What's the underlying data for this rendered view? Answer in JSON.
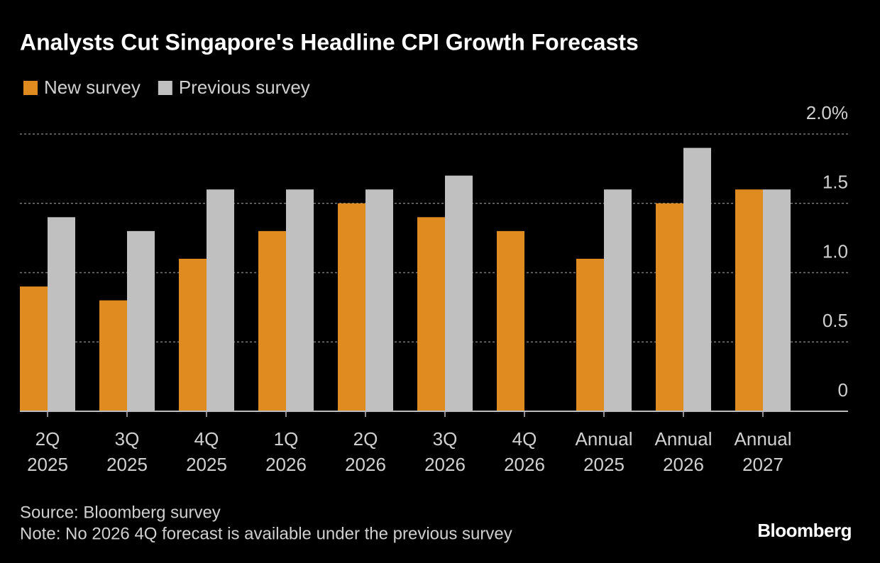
{
  "chart_data": {
    "type": "bar",
    "title": "Analysts Cut Singapore's Headline CPI Growth Forecasts",
    "categories": [
      [
        "2Q",
        "2025"
      ],
      [
        "3Q",
        "2025"
      ],
      [
        "4Q",
        "2025"
      ],
      [
        "1Q",
        "2026"
      ],
      [
        "2Q",
        "2026"
      ],
      [
        "3Q",
        "2026"
      ],
      [
        "4Q",
        "2026"
      ],
      [
        "Annual",
        "2025"
      ],
      [
        "Annual",
        "2026"
      ],
      [
        "Annual",
        "2027"
      ]
    ],
    "series": [
      {
        "name": "New survey",
        "color": "#e08b1f",
        "values": [
          0.9,
          0.8,
          1.1,
          1.3,
          1.5,
          1.4,
          1.3,
          1.1,
          1.5,
          1.6
        ]
      },
      {
        "name": "Previous survey",
        "color": "#c0c0c0",
        "values": [
          1.4,
          1.3,
          1.6,
          1.6,
          1.6,
          1.7,
          null,
          1.6,
          1.9,
          1.6
        ]
      }
    ],
    "ylim": [
      0,
      2
    ],
    "yticks": [
      0,
      0.5,
      {
        "value": 1,
        "label": "1.0"
      },
      1.5,
      {
        "value": 2,
        "label": "2.0%"
      }
    ],
    "grid": true,
    "source": "Source: Bloomberg survey",
    "note": "Note: No 2026 4Q forecast is available under the previous survey",
    "brand": "Bloomberg"
  }
}
